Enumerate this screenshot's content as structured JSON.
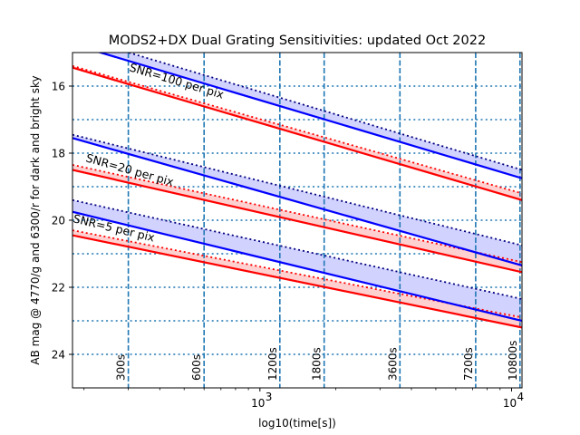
{
  "chart_data": {
    "type": "line",
    "title": "MODS2+DX Dual Grating Sensitivities: updated Oct 2022",
    "xlabel": "log10(time[s])",
    "ylabel": "AB mag @ 4770/g and 6300/r for dark and bright sky",
    "x_scale": "log",
    "xlim": [
      180,
      11000
    ],
    "ylim": [
      25.0,
      15.0
    ],
    "y_inverted": true,
    "x_ticks": [
      {
        "value": 1000,
        "label": "10"
      },
      {
        "value": 10000,
        "label": "10"
      }
    ],
    "x_tick_exponents": [
      "3",
      "4"
    ],
    "y_ticks": [
      16,
      18,
      20,
      22,
      24
    ],
    "y_tick_labels": [
      "16",
      "18",
      "20",
      "22",
      "24"
    ],
    "grid": {
      "horizontal": [
        16,
        17,
        18,
        19,
        20,
        21,
        22,
        23,
        24
      ],
      "style": "dotted"
    },
    "exposure_markers": [
      {
        "value": 300,
        "label": "300s"
      },
      {
        "value": 600,
        "label": "600s"
      },
      {
        "value": 1200,
        "label": "1200s"
      },
      {
        "value": 1800,
        "label": "1800s"
      },
      {
        "value": 3600,
        "label": "3600s"
      },
      {
        "value": 7200,
        "label": "7200s"
      },
      {
        "value": 10800,
        "label": "10800s"
      }
    ],
    "colors": {
      "blue": "#0000ff",
      "red": "#ff0000",
      "dark": "#00007f",
      "marker": "#1f77b4",
      "blue_fill": "#d2d2ff",
      "red_fill": "#ffd0d0"
    },
    "groups": [
      {
        "label": "SNR=100 per pix",
        "blue_solid": {
          "x": [
            180,
            11000
          ],
          "y": [
            14.75,
            18.75
          ]
        },
        "blue_dotted": {
          "x": [
            180,
            11000
          ],
          "y": [
            14.5,
            18.5
          ]
        },
        "red_solid": {
          "x": [
            180,
            11000
          ],
          "y": [
            15.45,
            19.4
          ]
        },
        "red_dotted": {
          "x": [
            180,
            11000
          ],
          "y": [
            15.4,
            19.2
          ]
        }
      },
      {
        "label": "SNR=20 per pix",
        "blue_solid": {
          "x": [
            180,
            11000
          ],
          "y": [
            17.55,
            21.35
          ]
        },
        "blue_dotted": {
          "x": [
            180,
            11000
          ],
          "y": [
            17.45,
            20.75
          ]
        },
        "red_solid": {
          "x": [
            180,
            11000
          ],
          "y": [
            18.5,
            21.55
          ]
        },
        "red_dotted": {
          "x": [
            180,
            11000
          ],
          "y": [
            18.35,
            21.25
          ]
        }
      },
      {
        "label": "SNR=5 per pix",
        "blue_solid": {
          "x": [
            180,
            11000
          ],
          "y": [
            19.75,
            23.0
          ]
        },
        "blue_dotted": {
          "x": [
            180,
            11000
          ],
          "y": [
            19.4,
            22.35
          ]
        },
        "red_solid": {
          "x": [
            180,
            11000
          ],
          "y": [
            20.45,
            23.2
          ]
        },
        "red_dotted": {
          "x": [
            180,
            11000
          ],
          "y": [
            20.3,
            22.9
          ]
        }
      }
    ]
  }
}
